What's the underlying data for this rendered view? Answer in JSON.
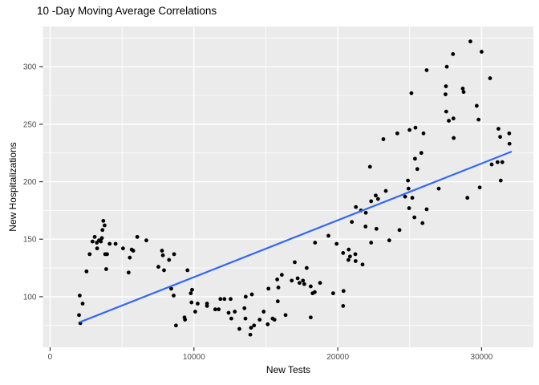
{
  "chart_data": {
    "type": "scatter",
    "title": "10 -Day Moving Average Correlations",
    "xlabel": "New Tests",
    "ylabel": "New Hospitalizations",
    "xlim": [
      -500,
      33600
    ],
    "ylim": [
      56,
      335
    ],
    "grid": true,
    "legend": false,
    "panel_bg": "#EBEBEB",
    "grid_color": "#FFFFFF",
    "tick_color": "#333333",
    "tick_label_color": "#4D4D4D",
    "point_color": "#000000",
    "x_tick_values": [
      0,
      10000,
      20000,
      30000
    ],
    "x_tick_labels": [
      "0",
      "10000",
      "20000",
      "30000"
    ],
    "x_minor_gridlines": [
      5000,
      15000,
      25000
    ],
    "y_tick_values": [
      100,
      150,
      200,
      250,
      300
    ],
    "y_tick_labels": [
      "100",
      "150",
      "200",
      "250",
      "300"
    ],
    "y_minor_gridlines": [
      75,
      125,
      175,
      225,
      275,
      325
    ],
    "trend_line": {
      "type": "linear",
      "color": "#3366FF",
      "x1": 2100,
      "y1": 78,
      "x2": 32050,
      "y2": 226
    },
    "points": [
      [
        2010,
        84
      ],
      [
        2060,
        101
      ],
      [
        2100,
        77
      ],
      [
        2260,
        94
      ],
      [
        2530,
        122
      ],
      [
        2750,
        137
      ],
      [
        2950,
        148
      ],
      [
        3100,
        152
      ],
      [
        3250,
        147
      ],
      [
        3270,
        142
      ],
      [
        3400,
        149
      ],
      [
        3530,
        148
      ],
      [
        3600,
        151
      ],
      [
        3640,
        158
      ],
      [
        3700,
        166
      ],
      [
        3790,
        162
      ],
      [
        3830,
        137
      ],
      [
        3900,
        124
      ],
      [
        3960,
        137
      ],
      [
        4140,
        146
      ],
      [
        4550,
        146
      ],
      [
        5070,
        142
      ],
      [
        5460,
        121
      ],
      [
        5540,
        134
      ],
      [
        5670,
        141
      ],
      [
        5780,
        140
      ],
      [
        6060,
        152
      ],
      [
        6690,
        149
      ],
      [
        7530,
        126
      ],
      [
        7780,
        140
      ],
      [
        7840,
        136
      ],
      [
        7920,
        123
      ],
      [
        8270,
        132
      ],
      [
        8420,
        107
      ],
      [
        8590,
        101
      ],
      [
        8620,
        137
      ],
      [
        8750,
        75
      ],
      [
        9340,
        82
      ],
      [
        9380,
        80
      ],
      [
        9550,
        123
      ],
      [
        9780,
        103
      ],
      [
        9830,
        95
      ],
      [
        9870,
        106
      ],
      [
        10090,
        87
      ],
      [
        10260,
        94
      ],
      [
        10910,
        94
      ],
      [
        10910,
        92
      ],
      [
        11480,
        89
      ],
      [
        11720,
        89
      ],
      [
        11840,
        98
      ],
      [
        12120,
        98
      ],
      [
        12410,
        86
      ],
      [
        12550,
        98
      ],
      [
        12600,
        81
      ],
      [
        12840,
        87
      ],
      [
        13160,
        72
      ],
      [
        13510,
        90
      ],
      [
        13580,
        81
      ],
      [
        13600,
        100
      ],
      [
        13920,
        67
      ],
      [
        13970,
        73
      ],
      [
        14030,
        102
      ],
      [
        14180,
        75
      ],
      [
        14570,
        80
      ],
      [
        14850,
        87
      ],
      [
        15130,
        76
      ],
      [
        15180,
        107
      ],
      [
        15470,
        81
      ],
      [
        15600,
        80
      ],
      [
        15790,
        115
      ],
      [
        15830,
        96
      ],
      [
        15870,
        108
      ],
      [
        16110,
        119
      ],
      [
        16370,
        84
      ],
      [
        16800,
        114
      ],
      [
        17010,
        130
      ],
      [
        17210,
        116
      ],
      [
        17340,
        112
      ],
      [
        17580,
        114
      ],
      [
        17670,
        111
      ],
      [
        17840,
        125
      ],
      [
        18120,
        109
      ],
      [
        18120,
        82
      ],
      [
        18250,
        103
      ],
      [
        18400,
        104
      ],
      [
        18420,
        147
      ],
      [
        18770,
        112
      ],
      [
        19350,
        153
      ],
      [
        19680,
        103
      ],
      [
        19920,
        146
      ],
      [
        20370,
        138
      ],
      [
        20370,
        92
      ],
      [
        20400,
        105
      ],
      [
        20740,
        132
      ],
      [
        20760,
        141
      ],
      [
        20850,
        135
      ],
      [
        20980,
        165
      ],
      [
        21220,
        137
      ],
      [
        21240,
        131
      ],
      [
        21260,
        178
      ],
      [
        21610,
        175
      ],
      [
        21720,
        128
      ],
      [
        21930,
        161
      ],
      [
        21950,
        173
      ],
      [
        22240,
        213
      ],
      [
        22320,
        183
      ],
      [
        22320,
        147
      ],
      [
        22640,
        188
      ],
      [
        22690,
        159
      ],
      [
        22800,
        185
      ],
      [
        23170,
        237
      ],
      [
        23340,
        192
      ],
      [
        23580,
        149
      ],
      [
        24140,
        242
      ],
      [
        24290,
        158
      ],
      [
        24680,
        187
      ],
      [
        24880,
        201
      ],
      [
        24920,
        194
      ],
      [
        24960,
        177
      ],
      [
        24990,
        245
      ],
      [
        25120,
        277
      ],
      [
        25180,
        186
      ],
      [
        25330,
        169
      ],
      [
        25370,
        220
      ],
      [
        25400,
        247
      ],
      [
        25530,
        211
      ],
      [
        25810,
        225
      ],
      [
        25890,
        164
      ],
      [
        25960,
        242
      ],
      [
        26180,
        297
      ],
      [
        26180,
        176
      ],
      [
        27020,
        194
      ],
      [
        27490,
        276
      ],
      [
        27520,
        283
      ],
      [
        27540,
        261
      ],
      [
        27580,
        300
      ],
      [
        27720,
        253
      ],
      [
        28010,
        311
      ],
      [
        28040,
        255
      ],
      [
        28060,
        238
      ],
      [
        28690,
        281
      ],
      [
        28750,
        278
      ],
      [
        29010,
        186
      ],
      [
        29220,
        322
      ],
      [
        29660,
        266
      ],
      [
        29790,
        254
      ],
      [
        29870,
        195
      ],
      [
        30000,
        313
      ],
      [
        30590,
        290
      ],
      [
        30700,
        215
      ],
      [
        31110,
        217
      ],
      [
        31170,
        246
      ],
      [
        31290,
        239
      ],
      [
        31330,
        201
      ],
      [
        31440,
        217
      ],
      [
        31920,
        242
      ],
      [
        31940,
        233
      ]
    ]
  }
}
